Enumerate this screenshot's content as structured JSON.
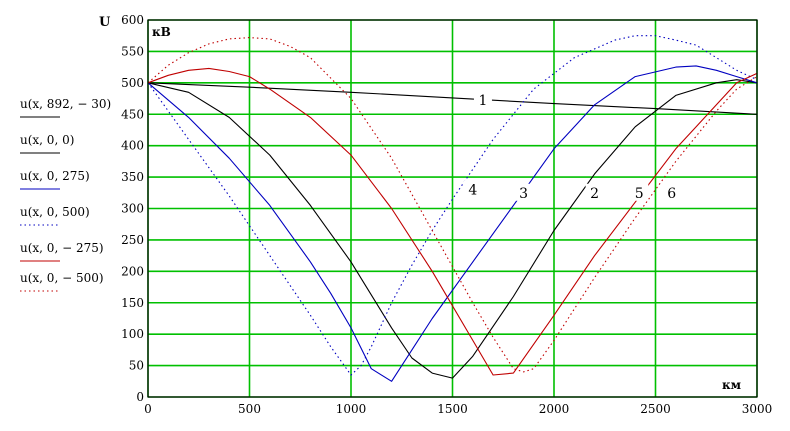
{
  "chart_data": {
    "type": "line",
    "ylabel": "U",
    "y_unit": "кВ",
    "x_unit": "км",
    "xlim": [
      0,
      3000
    ],
    "ylim": [
      0,
      600
    ],
    "xticks": [
      0,
      500,
      1000,
      1500,
      2000,
      2500,
      3000
    ],
    "yticks": [
      0,
      50,
      100,
      150,
      200,
      250,
      300,
      350,
      400,
      450,
      500,
      550,
      600
    ],
    "grid": true,
    "grid_color": "#00c000",
    "legend_position": "left",
    "series": [
      {
        "name": "u(x, 892, − 30)",
        "curve_label": "1",
        "color": "#000000",
        "style": "solid",
        "x": [
          0,
          500,
          1000,
          1500,
          2000,
          2500,
          3000
        ],
        "y": [
          500,
          493,
          485,
          476,
          467,
          459,
          450
        ]
      },
      {
        "name": "u(x, 0, 0)",
        "curve_label": "2",
        "color": "#000000",
        "style": "solid",
        "x": [
          0,
          200,
          400,
          600,
          800,
          1000,
          1200,
          1300,
          1400,
          1500,
          1600,
          1800,
          2000,
          2200,
          2400,
          2600,
          2800,
          2900,
          3000
        ],
        "y": [
          500,
          485,
          445,
          385,
          305,
          215,
          110,
          62,
          38,
          30,
          65,
          160,
          265,
          355,
          430,
          480,
          500,
          505,
          500
        ]
      },
      {
        "name": "u(x, 0, 275)",
        "curve_label": "3",
        "color": "#0000c0",
        "style": "solid",
        "x": [
          0,
          200,
          400,
          600,
          800,
          900,
          1000,
          1100,
          1200,
          1300,
          1400,
          1600,
          1800,
          2000,
          2200,
          2400,
          2600,
          2700,
          2800,
          2900,
          3000
        ],
        "y": [
          500,
          445,
          380,
          305,
          215,
          165,
          110,
          45,
          25,
          75,
          125,
          215,
          305,
          395,
          465,
          510,
          525,
          527,
          520,
          510,
          500
        ]
      },
      {
        "name": "u(x, 0, 500)",
        "curve_label": "4",
        "color": "#0000c0",
        "style": "dotted",
        "x": [
          0,
          200,
          400,
          600,
          800,
          900,
          1000,
          1050,
          1100,
          1200,
          1300,
          1400,
          1500,
          1700,
          1900,
          2100,
          2300,
          2400,
          2500,
          2600,
          2700,
          2800,
          2900,
          3000
        ],
        "y": [
          500,
          410,
          320,
          225,
          130,
          80,
          35,
          50,
          80,
          150,
          210,
          265,
          315,
          410,
          490,
          540,
          568,
          575,
          575,
          568,
          560,
          540,
          520,
          505
        ]
      },
      {
        "name": "u(x, 0, − 275)",
        "curve_label": "5",
        "color": "#c00000",
        "style": "solid",
        "x": [
          0,
          100,
          200,
          300,
          400,
          500,
          600,
          800,
          1000,
          1200,
          1400,
          1600,
          1700,
          1800,
          2000,
          2200,
          2400,
          2600,
          2800,
          2900,
          3000
        ],
        "y": [
          500,
          512,
          520,
          523,
          518,
          510,
          490,
          445,
          385,
          300,
          200,
          90,
          35,
          38,
          130,
          225,
          310,
          395,
          465,
          500,
          515
        ]
      },
      {
        "name": "u(x, 0, − 500)",
        "curve_label": "6",
        "color": "#c00000",
        "style": "dotted",
        "x": [
          0,
          100,
          200,
          300,
          400,
          500,
          600,
          700,
          800,
          1000,
          1200,
          1400,
          1600,
          1700,
          1800,
          1850,
          1900,
          2000,
          2200,
          2400,
          2600,
          2800,
          2900,
          3000
        ],
        "y": [
          500,
          528,
          548,
          562,
          570,
          572,
          570,
          558,
          540,
          475,
          380,
          265,
          150,
          95,
          45,
          40,
          45,
          90,
          190,
          285,
          375,
          455,
          490,
          510
        ]
      }
    ],
    "curve_label_positions": [
      {
        "label": "1",
        "x": 1650,
        "y": 473
      },
      {
        "label": "4",
        "x": 1600,
        "y": 330
      },
      {
        "label": "3",
        "x": 1850,
        "y": 325
      },
      {
        "label": "2",
        "x": 2200,
        "y": 325
      },
      {
        "label": "5",
        "x": 2420,
        "y": 325
      },
      {
        "label": "6",
        "x": 2580,
        "y": 325
      }
    ]
  }
}
